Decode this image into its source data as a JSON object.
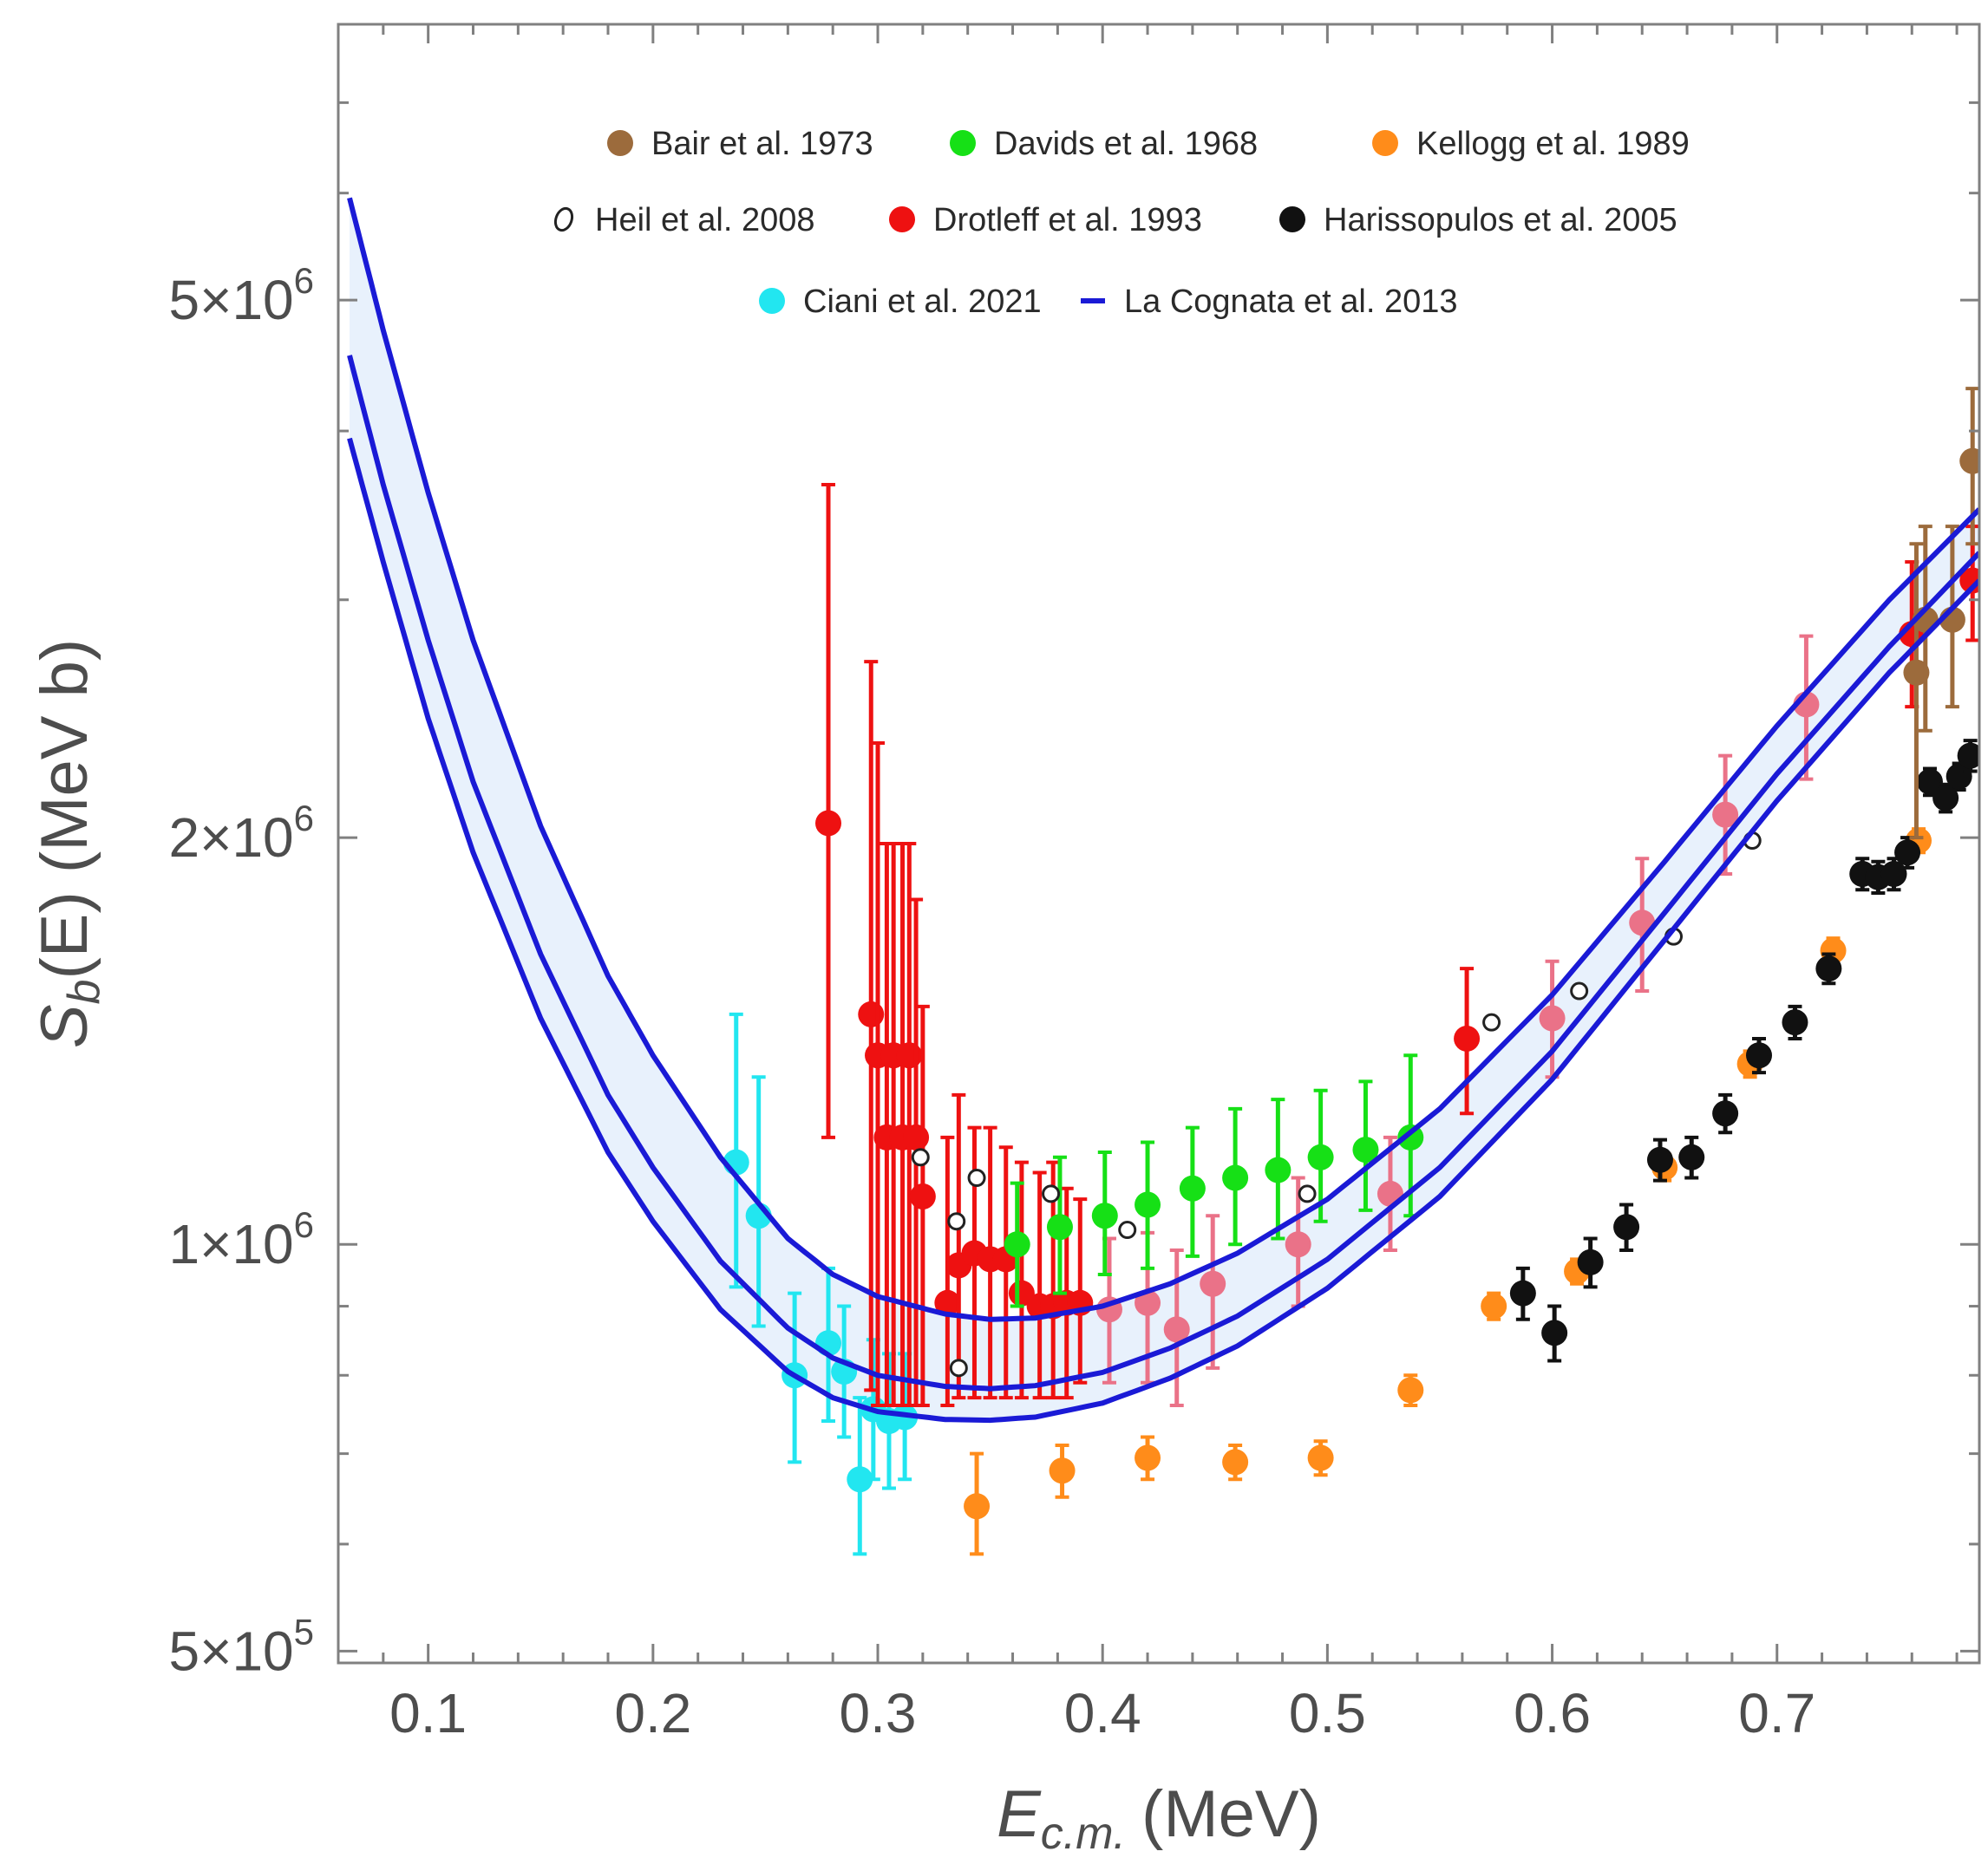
{
  "chart_data": {
    "type": "scatter",
    "xlabel": "E",
    "xlabel_sub": "c.m.",
    "xlabel_unit": "(MeV)",
    "ylabel": "S",
    "ylabel_sub": "b",
    "ylabel_unit": "(E) (MeV b)",
    "yscale": "log",
    "xlim": [
      0.06,
      0.79
    ],
    "ylim": [
      490000,
      8000000
    ],
    "x_ticks": [
      {
        "value": 0.1,
        "label": "0.1"
      },
      {
        "value": 0.2,
        "label": "0.2"
      },
      {
        "value": 0.3,
        "label": "0.3"
      },
      {
        "value": 0.4,
        "label": "0.4"
      },
      {
        "value": 0.5,
        "label": "0.5"
      },
      {
        "value": 0.6,
        "label": "0.6"
      },
      {
        "value": 0.7,
        "label": "0.7"
      }
    ],
    "y_ticks": [
      {
        "value": 500000,
        "mantissa": "5",
        "exponent": "5"
      },
      {
        "value": 1000000,
        "mantissa": "1",
        "exponent": "6"
      },
      {
        "value": 2000000,
        "mantissa": "2",
        "exponent": "6"
      },
      {
        "value": 5000000,
        "mantissa": "5",
        "exponent": "6"
      }
    ],
    "tick_times": "×",
    "tick_base": "10",
    "legend": [
      {
        "label": "Bair et al. 1973",
        "marker": "filled",
        "color": "#9c6b3c"
      },
      {
        "label": "Davids et al. 1968",
        "marker": "filled",
        "color": "#16e016"
      },
      {
        "label": "Kellogg et al. 1989",
        "marker": "filled",
        "color": "#ff8c1a"
      },
      {
        "label": "Heil et al. 2008",
        "marker": "open",
        "color": "#222222"
      },
      {
        "label": "Drotleff et al. 1993",
        "marker": "filled",
        "color": "#ee1111"
      },
      {
        "label": "Harissopulos et al. 2005",
        "marker": "filled",
        "color": "#111111"
      },
      {
        "label": "Ciani et al. 2021",
        "marker": "filled",
        "color": "#22e6f0"
      },
      {
        "label": "La Cognata et al. 2013",
        "marker": "line",
        "color": "#1a1ad6"
      }
    ],
    "band": {
      "name": "La Cognata et al. 2013",
      "color": "#1a1ad6",
      "fill": "#e4effb",
      "x": [
        0.065,
        0.08,
        0.1,
        0.12,
        0.15,
        0.18,
        0.2,
        0.23,
        0.26,
        0.28,
        0.3,
        0.33,
        0.35,
        0.37,
        0.4,
        0.43,
        0.46,
        0.5,
        0.55,
        0.6,
        0.65,
        0.7,
        0.75,
        0.79
      ],
      "upper": [
        5950000,
        4750000,
        3600000,
        2800000,
        2040000,
        1580000,
        1380000,
        1160000,
        1010000,
        950000,
        915000,
        888000,
        880000,
        882000,
        900000,
        935000,
        985000,
        1080000,
        1260000,
        1530000,
        1920000,
        2420000,
        3000000,
        3500000
      ],
      "mid": [
        4550000,
        3650000,
        2800000,
        2200000,
        1640000,
        1290000,
        1140000,
        972000,
        867000,
        824000,
        800000,
        785000,
        782000,
        786000,
        804000,
        838000,
        885000,
        975000,
        1140000,
        1390000,
        1760000,
        2230000,
        2770000,
        3250000
      ],
      "lower": [
        3950000,
        3200000,
        2450000,
        1950000,
        1470000,
        1170000,
        1040000,
        895000,
        805000,
        770000,
        752000,
        742000,
        741000,
        745000,
        763000,
        796000,
        841000,
        928000,
        1085000,
        1325000,
        1680000,
        2130000,
        2650000,
        3100000
      ]
    },
    "series": [
      {
        "name": "Ciani et al. 2021",
        "color": "#22e6f0",
        "marker": "filled",
        "points": [
          {
            "x": 0.237,
            "y": 1150000,
            "lo": 930000,
            "hi": 1480000
          },
          {
            "x": 0.247,
            "y": 1050000,
            "lo": 870000,
            "hi": 1330000
          },
          {
            "x": 0.263,
            "y": 800000,
            "lo": 690000,
            "hi": 920000
          },
          {
            "x": 0.278,
            "y": 845000,
            "lo": 740000,
            "hi": 960000
          },
          {
            "x": 0.285,
            "y": 805000,
            "lo": 720000,
            "hi": 900000
          },
          {
            "x": 0.292,
            "y": 670000,
            "lo": 590000,
            "hi": 770000
          },
          {
            "x": 0.298,
            "y": 755000,
            "lo": 670000,
            "hi": 850000
          },
          {
            "x": 0.305,
            "y": 740000,
            "lo": 660000,
            "hi": 830000
          },
          {
            "x": 0.312,
            "y": 745000,
            "lo": 670000,
            "hi": 830000
          }
        ]
      },
      {
        "name": "Drotleff et al. 1993",
        "color": "#ee1111",
        "marker": "filled",
        "points": [
          {
            "x": 0.278,
            "y": 2050000,
            "lo": 1200000,
            "hi": 3650000
          },
          {
            "x": 0.297,
            "y": 1480000,
            "lo": 780000,
            "hi": 2700000
          },
          {
            "x": 0.3,
            "y": 1380000,
            "lo": 760000,
            "hi": 2350000
          },
          {
            "x": 0.304,
            "y": 1200000,
            "lo": 760000,
            "hi": 1980000
          },
          {
            "x": 0.307,
            "y": 1380000,
            "lo": 760000,
            "hi": 1980000
          },
          {
            "x": 0.311,
            "y": 1200000,
            "lo": 760000,
            "hi": 1980000
          },
          {
            "x": 0.314,
            "y": 1380000,
            "lo": 760000,
            "hi": 1980000
          },
          {
            "x": 0.317,
            "y": 1200000,
            "lo": 760000,
            "hi": 1800000
          },
          {
            "x": 0.32,
            "y": 1085000,
            "lo": 760000,
            "hi": 1500000
          },
          {
            "x": 0.331,
            "y": 905000,
            "lo": 760000,
            "hi": 1200000
          },
          {
            "x": 0.336,
            "y": 965000,
            "lo": 770000,
            "hi": 1290000
          },
          {
            "x": 0.343,
            "y": 985000,
            "lo": 770000,
            "hi": 1220000
          },
          {
            "x": 0.35,
            "y": 975000,
            "lo": 770000,
            "hi": 1220000
          },
          {
            "x": 0.357,
            "y": 975000,
            "lo": 770000,
            "hi": 1180000
          },
          {
            "x": 0.364,
            "y": 920000,
            "lo": 770000,
            "hi": 1150000
          },
          {
            "x": 0.372,
            "y": 900000,
            "lo": 770000,
            "hi": 1130000
          },
          {
            "x": 0.378,
            "y": 900000,
            "lo": 770000,
            "hi": 1150000
          },
          {
            "x": 0.384,
            "y": 905000,
            "lo": 770000,
            "hi": 1100000
          },
          {
            "x": 0.39,
            "y": 905000,
            "lo": 790000,
            "hi": 1080000
          },
          {
            "x": 0.562,
            "y": 1420000,
            "lo": 1250000,
            "hi": 1600000
          },
          {
            "x": 0.76,
            "y": 2830000,
            "lo": 2500000,
            "hi": 3200000
          },
          {
            "x": 0.787,
            "y": 3100000,
            "lo": 2800000,
            "hi": 3400000
          }
        ]
      },
      {
        "name": "Drotleff et al. 1993 (behind band)",
        "color": "#ea7288",
        "marker": "filled",
        "points": [
          {
            "x": 0.403,
            "y": 895000,
            "lo": 790000,
            "hi": 1010000
          },
          {
            "x": 0.42,
            "y": 905000,
            "lo": 790000,
            "hi": 1020000
          },
          {
            "x": 0.433,
            "y": 865000,
            "lo": 760000,
            "hi": 990000
          },
          {
            "x": 0.449,
            "y": 935000,
            "lo": 810000,
            "hi": 1050000
          },
          {
            "x": 0.487,
            "y": 1000000,
            "lo": 900000,
            "hi": 1120000
          },
          {
            "x": 0.528,
            "y": 1090000,
            "lo": 990000,
            "hi": 1200000
          },
          {
            "x": 0.6,
            "y": 1470000,
            "lo": 1330000,
            "hi": 1620000
          },
          {
            "x": 0.64,
            "y": 1730000,
            "lo": 1540000,
            "hi": 1930000
          },
          {
            "x": 0.677,
            "y": 2080000,
            "lo": 1880000,
            "hi": 2300000
          },
          {
            "x": 0.713,
            "y": 2510000,
            "lo": 2210000,
            "hi": 2820000
          }
        ]
      },
      {
        "name": "Davids et al. 1968",
        "color": "#16e016",
        "marker": "filled",
        "points": [
          {
            "x": 0.362,
            "y": 1000000,
            "lo": 900000,
            "hi": 1110000
          },
          {
            "x": 0.381,
            "y": 1030000,
            "lo": 920000,
            "hi": 1160000
          },
          {
            "x": 0.401,
            "y": 1050000,
            "lo": 950000,
            "hi": 1170000
          },
          {
            "x": 0.42,
            "y": 1070000,
            "lo": 960000,
            "hi": 1190000
          },
          {
            "x": 0.44,
            "y": 1100000,
            "lo": 980000,
            "hi": 1220000
          },
          {
            "x": 0.459,
            "y": 1120000,
            "lo": 1000000,
            "hi": 1260000
          },
          {
            "x": 0.478,
            "y": 1135000,
            "lo": 1010000,
            "hi": 1280000
          },
          {
            "x": 0.497,
            "y": 1160000,
            "lo": 1040000,
            "hi": 1300000
          },
          {
            "x": 0.517,
            "y": 1175000,
            "lo": 1060000,
            "hi": 1320000
          },
          {
            "x": 0.537,
            "y": 1200000,
            "lo": 1050000,
            "hi": 1380000
          }
        ]
      },
      {
        "name": "Kellogg et al. 1989",
        "color": "#ff8c1a",
        "marker": "filled",
        "points": [
          {
            "x": 0.344,
            "y": 640000,
            "lo": 590000,
            "hi": 700000
          },
          {
            "x": 0.382,
            "y": 680000,
            "lo": 650000,
            "hi": 710000
          },
          {
            "x": 0.42,
            "y": 695000,
            "lo": 670000,
            "hi": 720000
          },
          {
            "x": 0.459,
            "y": 690000,
            "lo": 670000,
            "hi": 710000
          },
          {
            "x": 0.497,
            "y": 695000,
            "lo": 675000,
            "hi": 715000
          },
          {
            "x": 0.537,
            "y": 780000,
            "lo": 760000,
            "hi": 800000
          },
          {
            "x": 0.574,
            "y": 900000,
            "lo": 880000,
            "hi": 920000
          },
          {
            "x": 0.611,
            "y": 955000,
            "lo": 935000,
            "hi": 975000
          },
          {
            "x": 0.65,
            "y": 1140000,
            "lo": 1115000,
            "hi": 1165000
          },
          {
            "x": 0.688,
            "y": 1360000,
            "lo": 1330000,
            "hi": 1390000
          },
          {
            "x": 0.725,
            "y": 1650000,
            "lo": 1615000,
            "hi": 1685000
          },
          {
            "x": 0.763,
            "y": 1990000,
            "lo": 1950000,
            "hi": 2030000
          }
        ]
      },
      {
        "name": "Harissopulos et al. 2005",
        "color": "#111111",
        "marker": "filled",
        "points": [
          {
            "x": 0.587,
            "y": 920000,
            "lo": 880000,
            "hi": 960000
          },
          {
            "x": 0.601,
            "y": 860000,
            "lo": 820000,
            "hi": 900000
          },
          {
            "x": 0.617,
            "y": 970000,
            "lo": 930000,
            "hi": 1010000
          },
          {
            "x": 0.633,
            "y": 1030000,
            "lo": 990000,
            "hi": 1070000
          },
          {
            "x": 0.648,
            "y": 1155000,
            "lo": 1115000,
            "hi": 1195000
          },
          {
            "x": 0.662,
            "y": 1160000,
            "lo": 1120000,
            "hi": 1200000
          },
          {
            "x": 0.677,
            "y": 1250000,
            "lo": 1210000,
            "hi": 1290000
          },
          {
            "x": 0.692,
            "y": 1380000,
            "lo": 1340000,
            "hi": 1420000
          },
          {
            "x": 0.708,
            "y": 1460000,
            "lo": 1420000,
            "hi": 1500000
          },
          {
            "x": 0.723,
            "y": 1600000,
            "lo": 1560000,
            "hi": 1640000
          },
          {
            "x": 0.738,
            "y": 1880000,
            "lo": 1830000,
            "hi": 1930000
          },
          {
            "x": 0.745,
            "y": 1870000,
            "lo": 1820000,
            "hi": 1920000
          },
          {
            "x": 0.752,
            "y": 1880000,
            "lo": 1830000,
            "hi": 1930000
          },
          {
            "x": 0.758,
            "y": 1950000,
            "lo": 1900000,
            "hi": 2000000
          },
          {
            "x": 0.768,
            "y": 2200000,
            "lo": 2150000,
            "hi": 2250000
          },
          {
            "x": 0.775,
            "y": 2140000,
            "lo": 2090000,
            "hi": 2190000
          },
          {
            "x": 0.781,
            "y": 2220000,
            "lo": 2170000,
            "hi": 2270000
          },
          {
            "x": 0.786,
            "y": 2300000,
            "lo": 2240000,
            "hi": 2360000
          }
        ]
      },
      {
        "name": "Bair et al. 1973",
        "color": "#9c6b3c",
        "marker": "filled",
        "points": [
          {
            "x": 0.762,
            "y": 2650000,
            "lo": 2000000,
            "hi": 3300000
          },
          {
            "x": 0.766,
            "y": 2900000,
            "lo": 2400000,
            "hi": 3400000
          },
          {
            "x": 0.778,
            "y": 2900000,
            "lo": 2500000,
            "hi": 3400000
          },
          {
            "x": 0.787,
            "y": 3800000,
            "lo": 3300000,
            "hi": 4300000
          }
        ]
      },
      {
        "name": "Heil et al. 2008",
        "color": "#222222",
        "marker": "open",
        "points": [
          {
            "x": 0.319,
            "y": 1160000
          },
          {
            "x": 0.335,
            "y": 1040000
          },
          {
            "x": 0.344,
            "y": 1120000
          },
          {
            "x": 0.336,
            "y": 810000
          },
          {
            "x": 0.377,
            "y": 1090000
          },
          {
            "x": 0.411,
            "y": 1025000
          },
          {
            "x": 0.491,
            "y": 1090000
          },
          {
            "x": 0.573,
            "y": 1460000
          },
          {
            "x": 0.612,
            "y": 1540000
          },
          {
            "x": 0.654,
            "y": 1690000
          },
          {
            "x": 0.689,
            "y": 1990000
          }
        ]
      }
    ]
  }
}
